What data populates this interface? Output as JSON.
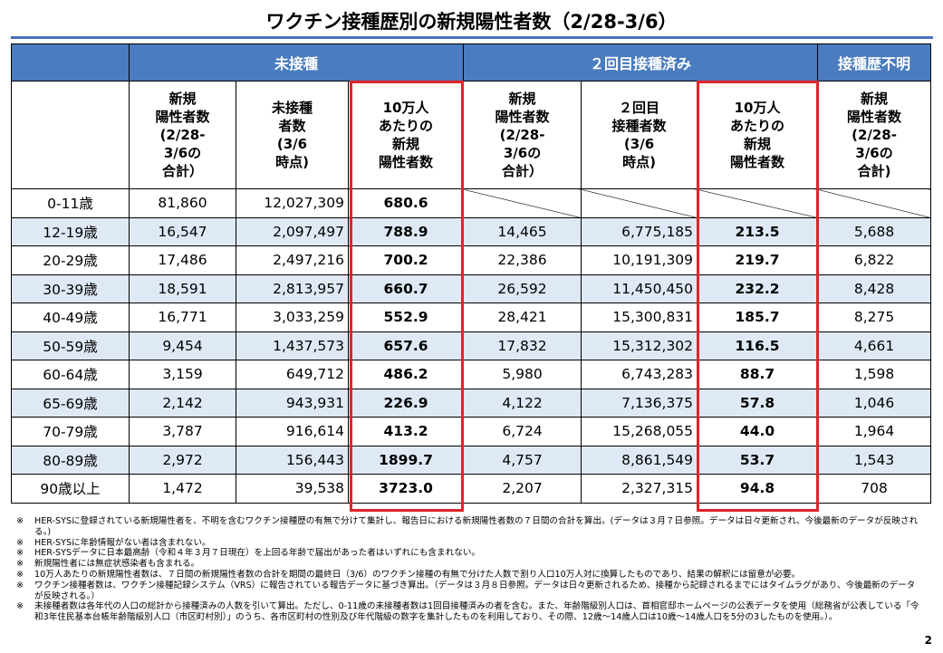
{
  "title": "ワクチン接種歴別の新規陽性者数（2/28-3/6）",
  "groups": {
    "unvaccinated": "未接種",
    "second_dose": "２回目接種済み",
    "unknown": "接種歴不明"
  },
  "subheaders": {
    "new_cases": "新規\n陽性者数\n(2/28-\n3/6の\n合計）",
    "unvax_population": "未接種\n者数\n(3/6\n時点)",
    "rate_per_100k": "10万人\nあたりの\n新規\n陽性者数",
    "second_new_cases": "新規\n陽性者数\n(2/28-\n3/6の\n合計）",
    "second_population": "２回目\n接種者数\n(3/6\n時点)",
    "second_rate_per_100k": "10万人\nあたりの\n新規\n陽性者数",
    "unknown_new_cases": "新規\n陽性者数\n(2/28-\n3/6の\n合計)"
  },
  "rows": [
    {
      "age": "0-11歳",
      "un_cases": "81,860",
      "un_pop": "12,027,309",
      "un_rate": "680.6",
      "v_cases": "",
      "v_pop": "",
      "v_rate": "",
      "unk": ""
    },
    {
      "age": "12-19歳",
      "un_cases": "16,547",
      "un_pop": "2,097,497",
      "un_rate": "788.9",
      "v_cases": "14,465",
      "v_pop": "6,775,185",
      "v_rate": "213.5",
      "unk": "5,688"
    },
    {
      "age": "20-29歳",
      "un_cases": "17,486",
      "un_pop": "2,497,216",
      "un_rate": "700.2",
      "v_cases": "22,386",
      "v_pop": "10,191,309",
      "v_rate": "219.7",
      "unk": "6,822"
    },
    {
      "age": "30-39歳",
      "un_cases": "18,591",
      "un_pop": "2,813,957",
      "un_rate": "660.7",
      "v_cases": "26,592",
      "v_pop": "11,450,450",
      "v_rate": "232.2",
      "unk": "8,428"
    },
    {
      "age": "40-49歳",
      "un_cases": "16,771",
      "un_pop": "3,033,259",
      "un_rate": "552.9",
      "v_cases": "28,421",
      "v_pop": "15,300,831",
      "v_rate": "185.7",
      "unk": "8,275"
    },
    {
      "age": "50-59歳",
      "un_cases": "9,454",
      "un_pop": "1,437,573",
      "un_rate": "657.6",
      "v_cases": "17,832",
      "v_pop": "15,312,302",
      "v_rate": "116.5",
      "unk": "4,661"
    },
    {
      "age": "60-64歳",
      "un_cases": "3,159",
      "un_pop": "649,712",
      "un_rate": "486.2",
      "v_cases": "5,980",
      "v_pop": "6,743,283",
      "v_rate": "88.7",
      "unk": "1,598"
    },
    {
      "age": "65-69歳",
      "un_cases": "2,142",
      "un_pop": "943,931",
      "un_rate": "226.9",
      "v_cases": "4,122",
      "v_pop": "7,136,375",
      "v_rate": "57.8",
      "unk": "1,046"
    },
    {
      "age": "70-79歳",
      "un_cases": "3,787",
      "un_pop": "916,614",
      "un_rate": "413.2",
      "v_cases": "6,724",
      "v_pop": "15,268,055",
      "v_rate": "44.0",
      "unk": "1,964"
    },
    {
      "age": "80-89歳",
      "un_cases": "2,972",
      "un_pop": "156,443",
      "un_rate": "1899.7",
      "v_cases": "4,757",
      "v_pop": "8,861,549",
      "v_rate": "53.7",
      "unk": "1,543"
    },
    {
      "age": "90歳以上",
      "un_cases": "1,472",
      "un_pop": "39,538",
      "un_rate": "3723.0",
      "v_cases": "2,207",
      "v_pop": "2,327,315",
      "v_rate": "94.8",
      "unk": "708"
    }
  ],
  "notes": [
    {
      "mark": "※",
      "text": "HER-SYSに登録されている新規陽性者を、不明を含むワクチン接種歴の有無で分けて集計し、報告日における新規陽性者数の７日間の合計を算出。(データは３月７日参照。データは日々更新され、今後最新のデータが反映される。)"
    },
    {
      "mark": "※",
      "text": "HER-SYSに年齢情報がない者は含まれない。"
    },
    {
      "mark": "※",
      "text": "HER-SYSデータに日本最高齢（令和４年３月７日現在）を上回る年齢で届出があった者はいずれにも含まれない。"
    },
    {
      "mark": "※",
      "text": "新規陽性者には無症状感染者も含まれる。"
    },
    {
      "mark": "※",
      "text": "10万人あたりの新規陽性者数は、７日間の新規陽性者数の合計を期間の最終日（3/6）のワクチン接種の有無で分けた人数で割り人口10万人対に換算したものであり、結果の解釈には留意が必要。"
    },
    {
      "mark": "※",
      "text": "ワクチン接種者数は、ワクチン接種記録システム（VRS）に報告されている報告データに基づき算出。（データは３月８日参照。データは日々更新されるため、接種から記録されるまでにはタイムラグがあり、今後最新のデータが反映される。）"
    },
    {
      "mark": "※",
      "text": "未接種者数は各年代の人口の総計から接種済みの人数を引いて算出。ただし、0-11歳の未接種者数は1回目接種済みの者を含む。また、年齢階級別人口は、首相官邸ホームページの公表データを使用（総務省が公表している「令和3年住民基本台帳年齢階級別人口（市区町村別）」のうち、各市区町村の性別及び年代階級の数字を集計したものを利用しており、その際、12歳～14歳人口は10歳～14歳人口を5分の3したものを使用。）。"
    }
  ],
  "page_number": "2"
}
